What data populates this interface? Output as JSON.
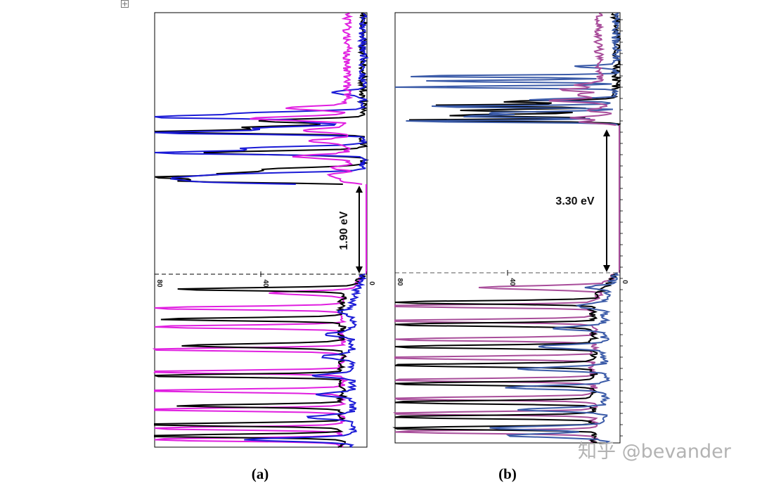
{
  "chart_data": [
    {
      "type": "line",
      "panel_label": "(a)",
      "orientation": "horizontal DOS (intensity on x-axis, energy on y-axis)",
      "x_axis": {
        "reversed": true,
        "ticks": [
          "80",
          "40",
          "0"
        ],
        "xlim": [
          0,
          80
        ]
      },
      "band_gap_label": "1.90 eV",
      "band_gap_label_rotation": "vertical",
      "colors": {
        "total": "#000000",
        "blue": "#1a1ad6",
        "magenta": "#e01ee0"
      },
      "conduction_peaks": {
        "black": [
          [
            68,
            0.04
          ],
          [
            72,
            0.09
          ],
          [
            50,
            0.14
          ],
          [
            35,
            0.2
          ],
          [
            60,
            0.42
          ],
          [
            80,
            0.7
          ],
          [
            45,
            0.76
          ],
          [
            40,
            0.85
          ]
        ],
        "blue": [
          [
            55,
            0.03
          ],
          [
            60,
            0.08
          ],
          [
            48,
            0.13
          ],
          [
            80,
            0.42
          ],
          [
            45,
            0.48
          ],
          [
            80,
            0.69
          ],
          [
            40,
            0.75
          ],
          [
            22,
            0.84
          ],
          [
            80,
            0.9
          ],
          [
            45,
            0.95
          ],
          [
            12,
            1.23
          ]
        ],
        "magenta": [
          [
            9,
            0.05
          ],
          [
            12,
            0.12
          ],
          [
            8,
            0.22
          ],
          [
            20,
            0.37
          ],
          [
            14,
            0.58
          ],
          [
            17,
            0.72
          ],
          [
            38,
            0.88
          ],
          [
            22,
            1.02
          ]
        ]
      },
      "valence_peaks": {
        "black": [
          [
            67,
            0.2
          ],
          [
            70,
            0.6
          ],
          [
            60,
            0.95
          ],
          [
            78,
            1.35
          ],
          [
            62,
            1.75
          ],
          [
            80,
            2.0
          ],
          [
            80,
            2.15
          ]
        ],
        "magenta": [
          [
            30,
            0.25
          ],
          [
            80,
            0.45
          ],
          [
            80,
            0.7
          ],
          [
            80,
            1.0
          ],
          [
            80,
            1.3
          ],
          [
            80,
            1.55
          ],
          [
            80,
            1.8
          ],
          [
            80,
            2.05
          ],
          [
            80,
            2.2
          ]
        ],
        "blue": [
          [
            6,
            0.5
          ],
          [
            10,
            0.8
          ],
          [
            13,
            1.1
          ],
          [
            15,
            1.35
          ],
          [
            14,
            1.6
          ],
          [
            18,
            1.9
          ],
          [
            40,
            2.2
          ]
        ]
      }
    },
    {
      "type": "line",
      "panel_label": "(b)",
      "orientation": "horizontal DOS (intensity on x-axis, energy on y-axis)",
      "x_axis": {
        "reversed": true,
        "ticks": [
          "80",
          "40",
          "0"
        ],
        "xlim": [
          0,
          80
        ]
      },
      "band_gap_label": "3.30 eV",
      "band_gap_label_rotation": "horizontal",
      "colors": {
        "total": "#000000",
        "blue": "#3b5ba8",
        "magenta": "#a84d9a"
      },
      "conduction_peaks": {
        "black": [
          [
            80,
            0.1
          ],
          [
            60,
            0.2
          ],
          [
            55,
            0.3
          ],
          [
            72,
            0.4
          ],
          [
            40,
            0.48
          ]
        ],
        "blue": [
          [
            80,
            0.08
          ],
          [
            55,
            0.18
          ],
          [
            48,
            0.25
          ],
          [
            70,
            0.38
          ],
          [
            30,
            0.52
          ],
          [
            80,
            0.78
          ],
          [
            70,
            0.9
          ],
          [
            80,
            1.0
          ],
          [
            15,
            1.2
          ]
        ],
        "magenta": [
          [
            12,
            0.06
          ],
          [
            15,
            0.15
          ],
          [
            8,
            0.3
          ],
          [
            20,
            0.5
          ],
          [
            9,
            0.62
          ],
          [
            15,
            0.72
          ],
          [
            8,
            0.82
          ]
        ]
      },
      "valence_peaks": {
        "black": [
          [
            80,
            0.4
          ],
          [
            80,
            0.7
          ],
          [
            80,
            1.0
          ],
          [
            80,
            1.25
          ],
          [
            80,
            1.5
          ],
          [
            80,
            1.75
          ],
          [
            80,
            1.95
          ],
          [
            80,
            2.1
          ]
        ],
        "magenta": [
          [
            45,
            0.2
          ],
          [
            80,
            0.45
          ],
          [
            80,
            0.65
          ],
          [
            80,
            0.9
          ],
          [
            80,
            1.15
          ],
          [
            80,
            1.45
          ],
          [
            80,
            1.7
          ],
          [
            80,
            1.9
          ],
          [
            80,
            2.15
          ]
        ],
        "blue": [
          [
            8,
            0.2
          ],
          [
            10,
            0.45
          ],
          [
            18,
            0.75
          ],
          [
            25,
            1.0
          ],
          [
            30,
            1.3
          ],
          [
            35,
            1.55
          ],
          [
            30,
            1.85
          ],
          [
            40,
            2.1
          ],
          [
            35,
            2.2
          ]
        ]
      }
    }
  ],
  "watermark": "知乎 @bevander"
}
